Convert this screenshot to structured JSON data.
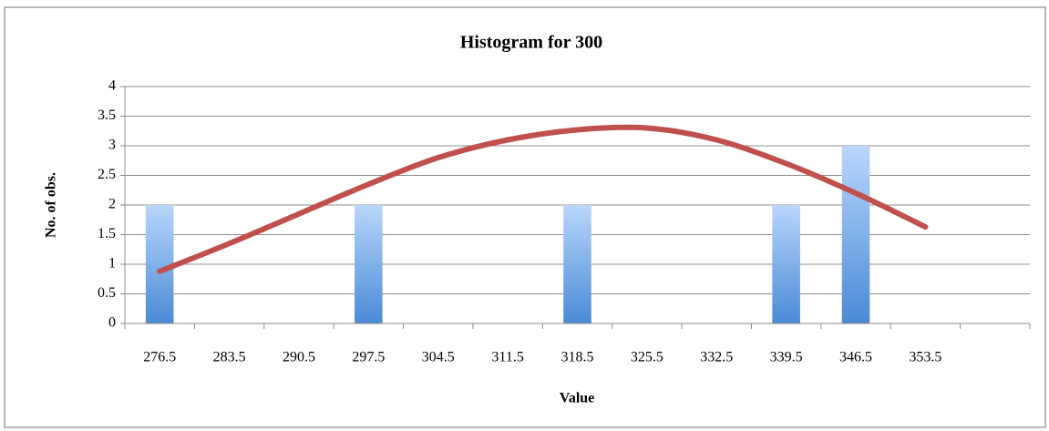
{
  "chart_data": {
    "type": "bar",
    "title": "Histogram for 300",
    "x_label": "Value",
    "y_label": "No. of obs.",
    "categories": [
      "276.5",
      "283.5",
      "290.5",
      "297.5",
      "304.5",
      "311.5",
      "318.5",
      "325.5",
      "332.5",
      "339.5",
      "346.5",
      "353.5",
      null
    ],
    "series": [
      {
        "type": "bar",
        "color": "#4a8ad6",
        "values": [
          2,
          0,
          0,
          2,
          0,
          0,
          2,
          0,
          0,
          2,
          3,
          0,
          0
        ]
      },
      {
        "type": "line",
        "color": "#c0504d",
        "values": [
          0.88,
          1.35,
          1.85,
          2.35,
          2.8,
          3.1,
          3.27,
          3.3,
          3.1,
          2.7,
          2.2,
          1.63,
          null
        ]
      }
    ],
    "ylim": [
      0,
      4
    ],
    "yticks": [
      0,
      0.5,
      1,
      1.5,
      2,
      2.5,
      3,
      3.5,
      4
    ],
    "grid": true
  }
}
